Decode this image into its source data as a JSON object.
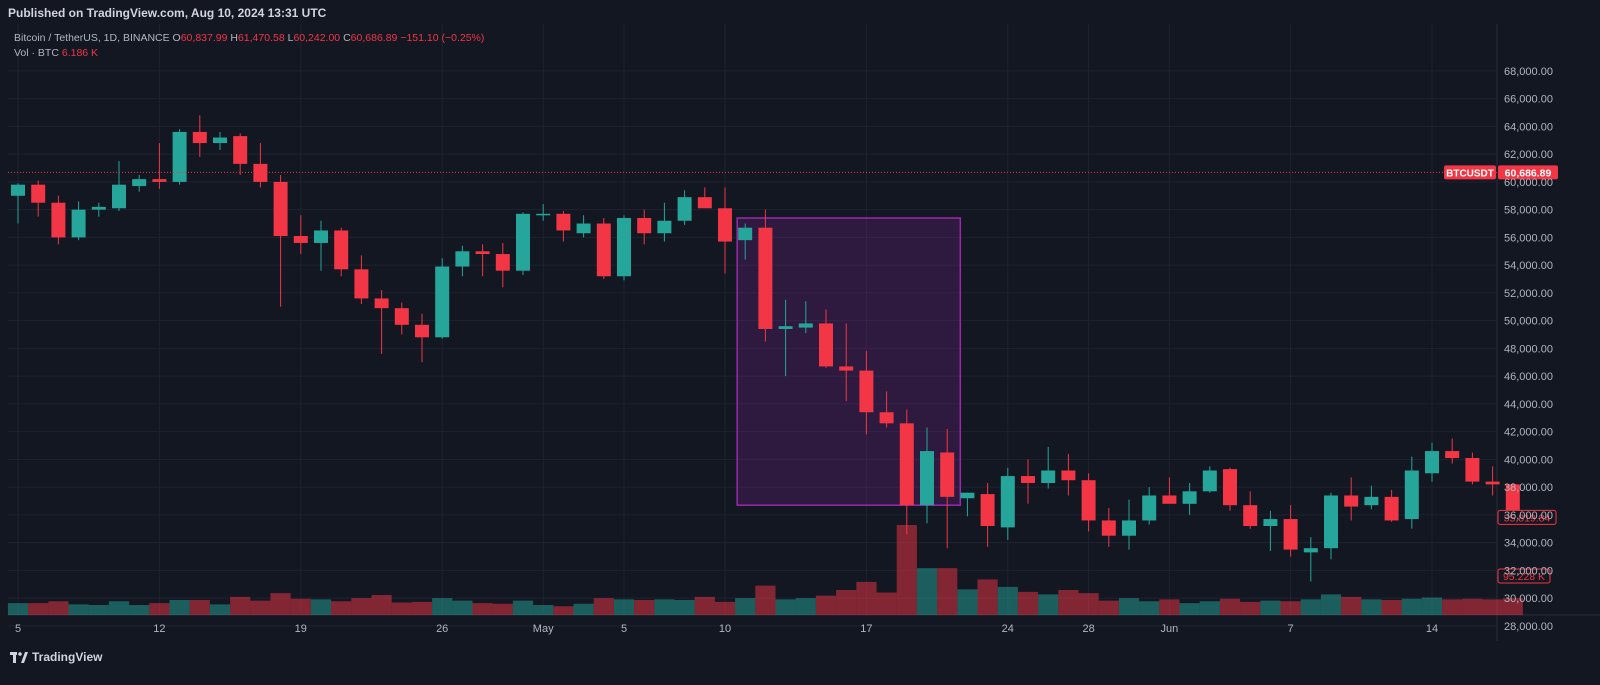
{
  "header": {
    "published": "Published on TradingView.com, Aug 10, 2024 13:31 UTC"
  },
  "legend": {
    "symbol": "Bitcoin / TetherUS, 1D, BINANCE",
    "open_label": "O",
    "open": "60,837.99",
    "high_label": "H",
    "high": "61,470.58",
    "low_label": "L",
    "low": "60,242.00",
    "close_label": "C",
    "close": "60,686.89",
    "change": "−151.10 (−0.25%)",
    "volume_label": "Vol · BTC",
    "volume": "6.186 K"
  },
  "footer": {
    "brand": "TradingView"
  },
  "colors": {
    "up": "#26a69a",
    "down": "#f23645",
    "background": "#131722",
    "grid": "#1f2330",
    "box": "#9c27b0"
  },
  "chart_data": {
    "type": "candlestick",
    "price_axis": {
      "ticks": [
        "28,000.00",
        "30,000.00",
        "32,000.00",
        "34,000.00",
        "36,000.00",
        "38,000.00",
        "40,000.00",
        "42,000.00",
        "44,000.00",
        "46,000.00",
        "48,000.00",
        "50,000.00",
        "52,000.00",
        "54,000.00",
        "56,000.00",
        "58,000.00",
        "60,000.00",
        "62,000.00",
        "64,000.00",
        "66,000.00",
        "68,000.00"
      ],
      "min": 26500,
      "max": 69000
    },
    "time_axis": {
      "labels": [
        {
          "text": "5",
          "bar": 0
        },
        {
          "text": "12",
          "bar": 7
        },
        {
          "text": "19",
          "bar": 14
        },
        {
          "text": "26",
          "bar": 21
        },
        {
          "text": "May",
          "bar": 26
        },
        {
          "text": "5",
          "bar": 30
        },
        {
          "text": "10",
          "bar": 35
        },
        {
          "text": "17",
          "bar": 42
        },
        {
          "text": "24",
          "bar": 49
        },
        {
          "text": "28",
          "bar": 53
        },
        {
          "text": "Jun",
          "bar": 57
        },
        {
          "text": "7",
          "bar": 63
        },
        {
          "text": "14",
          "bar": 70
        }
      ]
    },
    "last_price": {
      "symbol": "BTCUSDT",
      "value": 60686.89,
      "label": "60,686.89"
    },
    "markers": {
      "price_label": "35,819.84",
      "price_value": 35819.84,
      "volume_label": "95.228 K"
    },
    "box": {
      "bar_start": 36,
      "bar_end": 46.5,
      "price_top": 57400,
      "price_bottom": 36700
    },
    "candles": [
      [
        59000,
        59900,
        57000,
        59800,
        95
      ],
      [
        59800,
        60100,
        57500,
        58500,
        95
      ],
      [
        58500,
        59000,
        55500,
        56000,
        110
      ],
      [
        56000,
        58600,
        55800,
        58000,
        85
      ],
      [
        58000,
        58500,
        57500,
        58200,
        80
      ],
      [
        58100,
        61500,
        57900,
        59800,
        110
      ],
      [
        59700,
        60500,
        59300,
        60200,
        80
      ],
      [
        60200,
        62800,
        59500,
        60000,
        95
      ],
      [
        60000,
        63800,
        59800,
        63600,
        120
      ],
      [
        63600,
        64800,
        61800,
        62800,
        120
      ],
      [
        62800,
        63600,
        62300,
        63200,
        85
      ],
      [
        63300,
        63500,
        60500,
        61300,
        145
      ],
      [
        61300,
        62800,
        59600,
        60000,
        115
      ],
      [
        60000,
        60500,
        51000,
        56100,
        175
      ],
      [
        56100,
        57600,
        54800,
        55600,
        130
      ],
      [
        55600,
        57200,
        53600,
        56500,
        125
      ],
      [
        56500,
        56700,
        53200,
        53700,
        110
      ],
      [
        53700,
        54700,
        51200,
        51600,
        135
      ],
      [
        51600,
        52200,
        47600,
        50900,
        160
      ],
      [
        50900,
        51300,
        49000,
        49700,
        100
      ],
      [
        49700,
        50500,
        47000,
        48800,
        105
      ],
      [
        48800,
        54500,
        48700,
        53900,
        135
      ],
      [
        53900,
        55400,
        53200,
        55000,
        115
      ],
      [
        55000,
        55500,
        53200,
        54800,
        95
      ],
      [
        54800,
        55600,
        52400,
        53600,
        90
      ],
      [
        53600,
        57800,
        53300,
        57700,
        115
      ],
      [
        57600,
        58400,
        57200,
        57700,
        80
      ],
      [
        57700,
        57900,
        55700,
        56500,
        70
      ],
      [
        56300,
        57600,
        56000,
        57000,
        90
      ],
      [
        57000,
        57400,
        53000,
        53200,
        135
      ],
      [
        53200,
        57600,
        52900,
        57400,
        125
      ],
      [
        57400,
        58000,
        55500,
        56300,
        120
      ],
      [
        56300,
        58500,
        55700,
        57200,
        125
      ],
      [
        57200,
        59400,
        56900,
        58900,
        120
      ],
      [
        58900,
        59600,
        58300,
        58100,
        145
      ],
      [
        58100,
        59600,
        53400,
        55700,
        105
      ],
      [
        55800,
        57000,
        54400,
        56700,
        135
      ],
      [
        56700,
        58000,
        48500,
        49400,
        235
      ],
      [
        49400,
        51500,
        46000,
        49600,
        125
      ],
      [
        49500,
        51400,
        49100,
        49800,
        135
      ],
      [
        49800,
        50800,
        46600,
        46700,
        155
      ],
      [
        46700,
        49800,
        44200,
        46400,
        200
      ],
      [
        46400,
        47800,
        41800,
        43400,
        265
      ],
      [
        43400,
        44900,
        42300,
        42600,
        180
      ],
      [
        42600,
        43600,
        34600,
        36700,
        720
      ],
      [
        36700,
        42300,
        35400,
        40600,
        375
      ],
      [
        40500,
        42200,
        33600,
        37300,
        375
      ],
      [
        37200,
        37600,
        35900,
        37600,
        205
      ],
      [
        37500,
        38300,
        33700,
        35200,
        285
      ],
      [
        35100,
        39400,
        34200,
        38800,
        225
      ],
      [
        38800,
        40000,
        36800,
        38300,
        185
      ],
      [
        38300,
        40900,
        37900,
        39200,
        165
      ],
      [
        39200,
        40400,
        37400,
        38500,
        200
      ],
      [
        38500,
        39000,
        34800,
        35600,
        175
      ],
      [
        35600,
        36500,
        33700,
        34500,
        115
      ],
      [
        34500,
        37100,
        33500,
        35600,
        135
      ],
      [
        35600,
        38000,
        35300,
        37400,
        110
      ],
      [
        37400,
        38700,
        37000,
        36800,
        125
      ],
      [
        36800,
        38300,
        36000,
        37700,
        95
      ],
      [
        37700,
        39500,
        37600,
        39200,
        110
      ],
      [
        39300,
        39400,
        36300,
        36700,
        130
      ],
      [
        36700,
        37700,
        35000,
        35200,
        105
      ],
      [
        35200,
        36300,
        33400,
        35700,
        115
      ],
      [
        35700,
        36700,
        33000,
        33500,
        110
      ],
      [
        33300,
        34400,
        31200,
        33600,
        125
      ],
      [
        33600,
        37600,
        32800,
        37400,
        165
      ],
      [
        37400,
        38700,
        35600,
        36600,
        145
      ],
      [
        36700,
        38100,
        36400,
        37300,
        125
      ],
      [
        37300,
        37800,
        35500,
        35600,
        120
      ],
      [
        35700,
        40200,
        35000,
        39200,
        130
      ],
      [
        39000,
        41200,
        38400,
        40600,
        140
      ],
      [
        40600,
        41500,
        39700,
        40100,
        125
      ],
      [
        40100,
        40500,
        38200,
        38400,
        130
      ],
      [
        38400,
        39500,
        37400,
        38200,
        125
      ],
      [
        38200,
        38300,
        35500,
        35800,
        135
      ]
    ]
  }
}
